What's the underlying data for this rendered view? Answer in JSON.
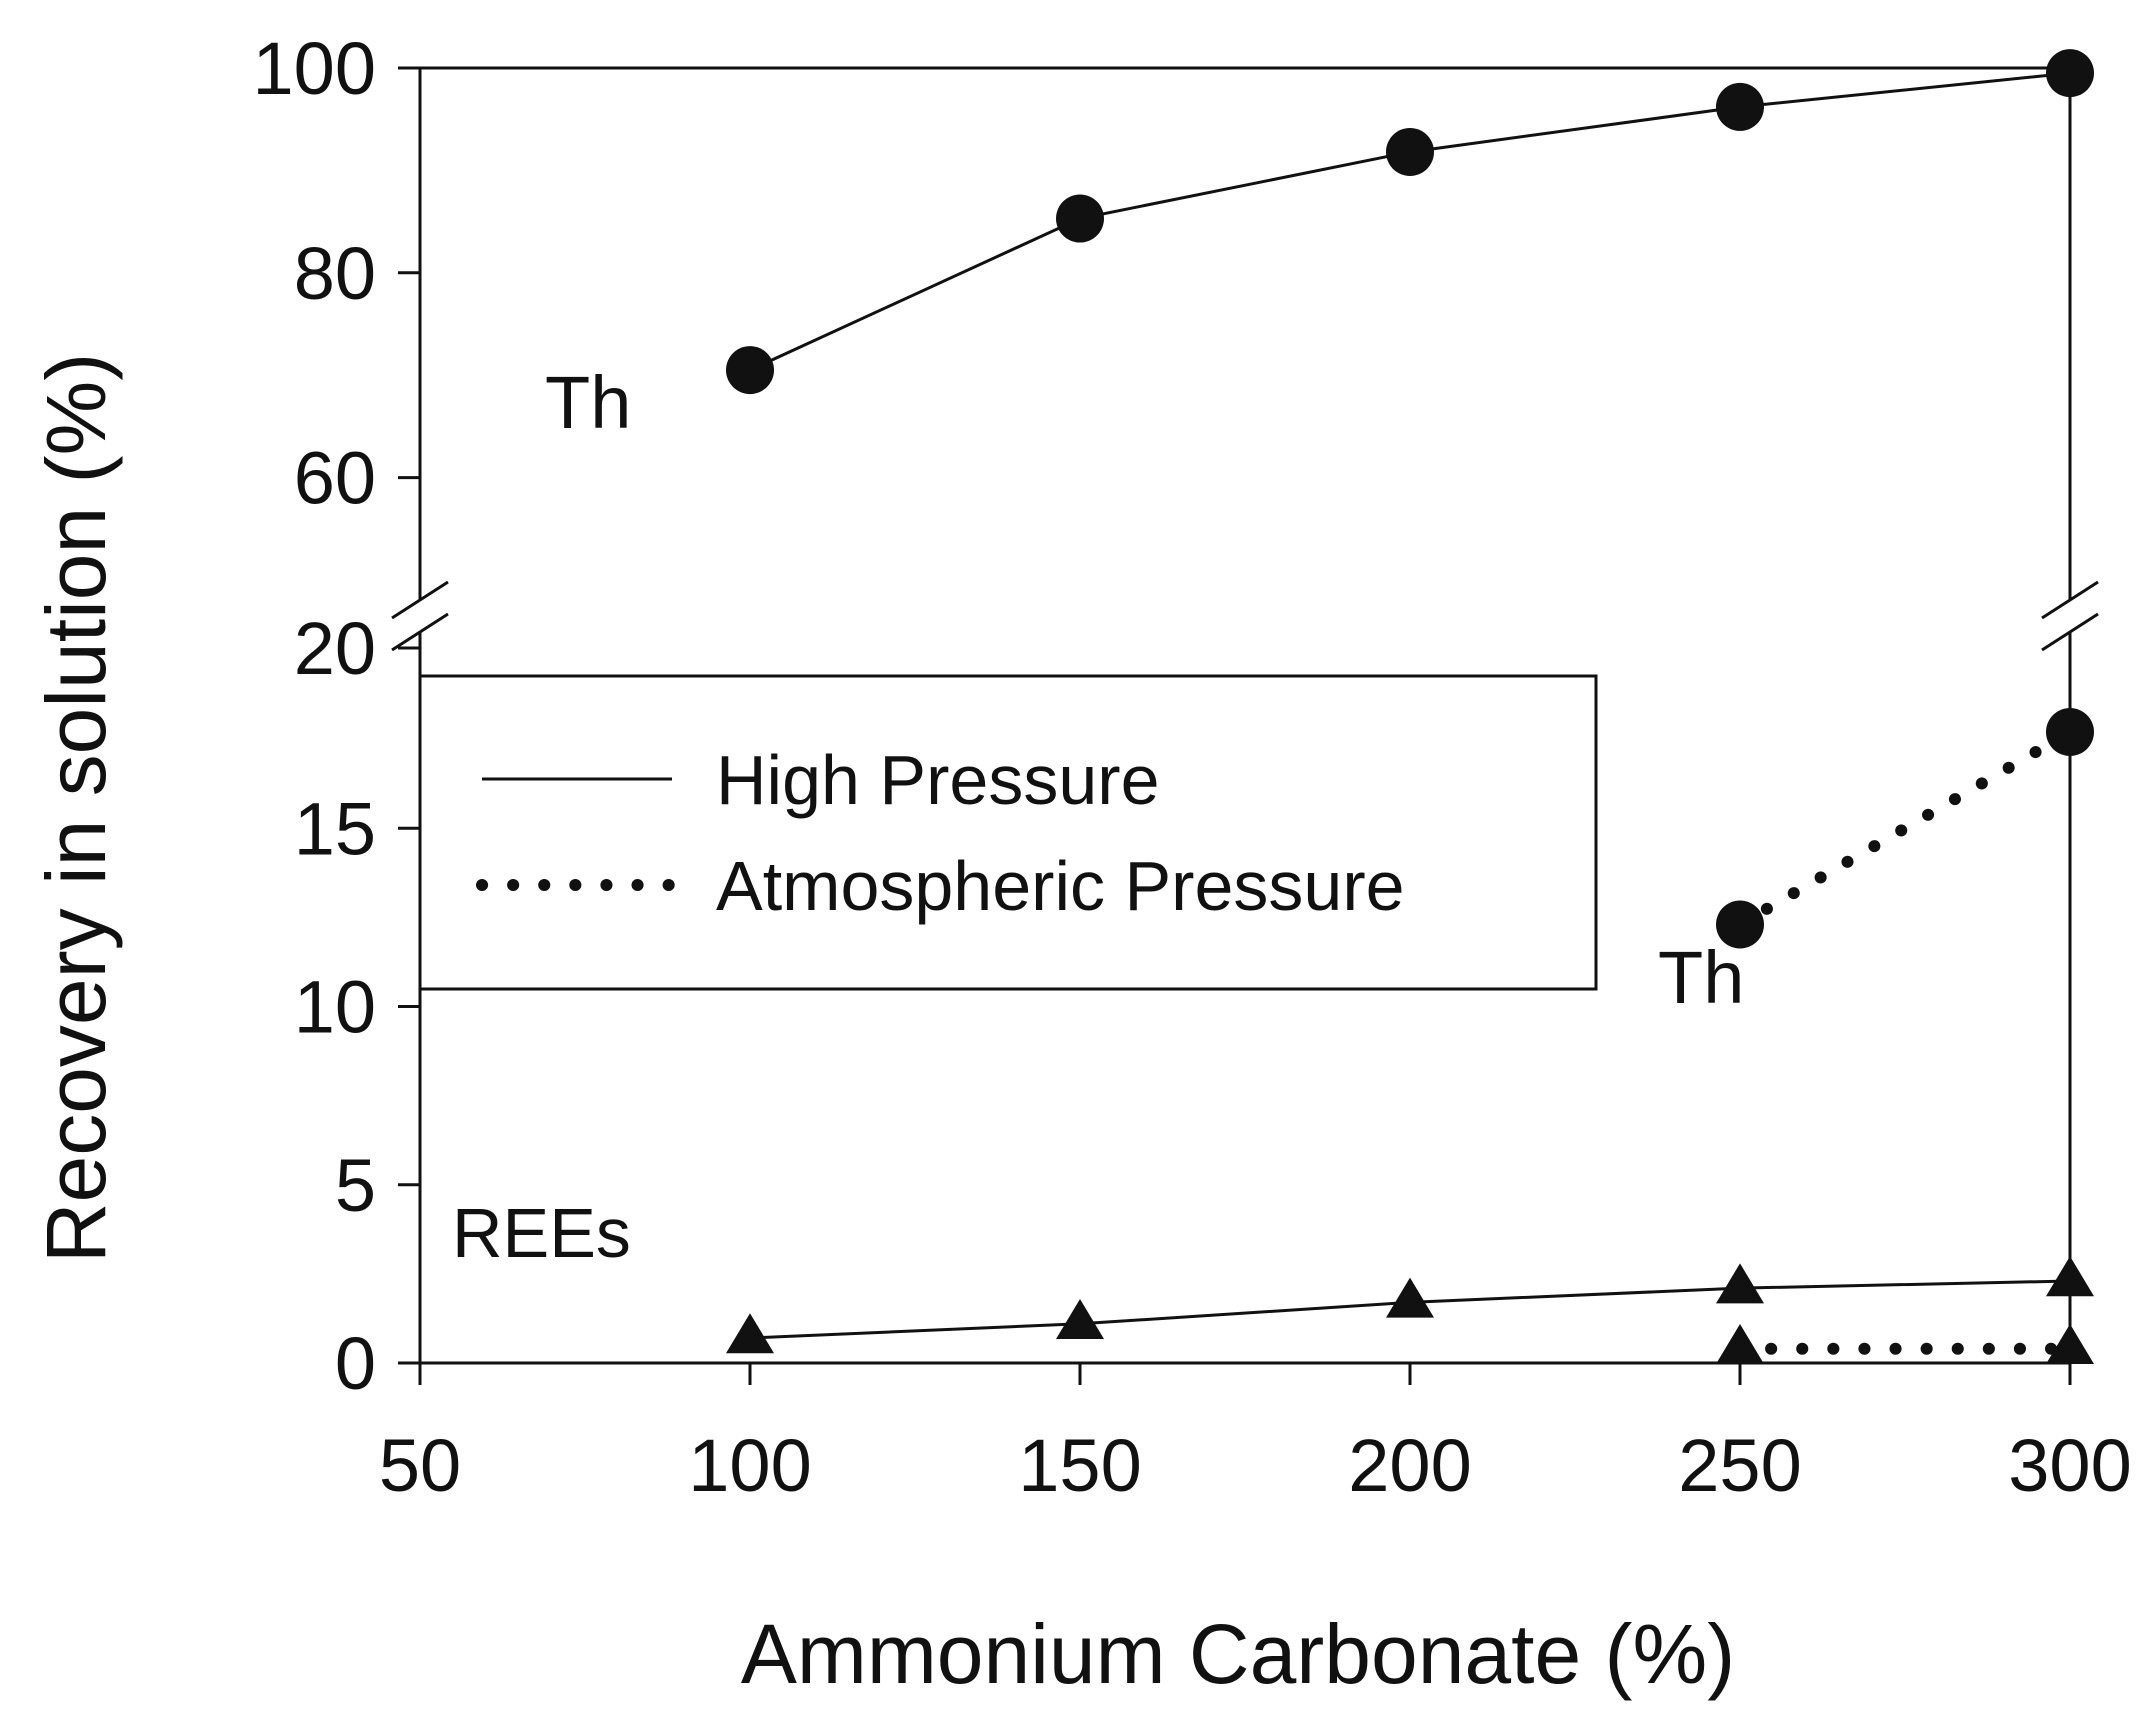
{
  "chart_data": {
    "type": "line",
    "title": "",
    "xlabel": "Ammonium Carbonate (%)",
    "ylabel": "Recovery in solution (%)",
    "xlim": [
      50,
      300
    ],
    "x_ticks": [
      "50",
      "100",
      "150",
      "200",
      "250",
      "300"
    ],
    "y_axis_break": true,
    "ylim_lower": [
      0,
      20
    ],
    "ylim_upper": [
      50,
      100
    ],
    "y_ticks_lower": [
      "0",
      "5",
      "10",
      "15",
      "20"
    ],
    "y_ticks_upper": [
      "60",
      "80",
      "100"
    ],
    "legend": {
      "placement": "center-left",
      "entries": [
        {
          "label": "High Pressure",
          "style": "solid"
        },
        {
          "label": "Atmospheric Pressure",
          "style": "dotted"
        }
      ]
    },
    "series": [
      {
        "name": "Th - High Pressure",
        "element": "Th",
        "condition": "High Pressure",
        "style": "solid",
        "marker": "circle",
        "x": [
          100,
          150,
          200,
          250,
          300
        ],
        "y": [
          70.5,
          85.3,
          91.8,
          96.2,
          99.5
        ]
      },
      {
        "name": "Th - Atmospheric Pressure",
        "element": "Th",
        "condition": "Atmospheric Pressure",
        "style": "dotted",
        "marker": "circle",
        "x": [
          250,
          300
        ],
        "y": [
          12.3,
          17.7
        ]
      },
      {
        "name": "REEs - High Pressure",
        "element": "REEs",
        "condition": "High Pressure",
        "style": "solid",
        "marker": "triangle",
        "x": [
          100,
          150,
          200,
          250,
          300
        ],
        "y": [
          0.7,
          1.1,
          1.7,
          2.1,
          2.3
        ]
      },
      {
        "name": "REEs - Atmospheric Pressure",
        "element": "REEs",
        "condition": "Atmospheric Pressure",
        "style": "dotted",
        "marker": "triangle",
        "x": [
          250,
          300
        ],
        "y": [
          0.4,
          0.4
        ]
      }
    ],
    "annotations": [
      {
        "text": "Th",
        "near": "upper Th series, left of first point"
      },
      {
        "text": "Th",
        "near": "lower Th series, below first point"
      },
      {
        "text": "REEs",
        "near": "REEs series, upper left"
      }
    ]
  }
}
